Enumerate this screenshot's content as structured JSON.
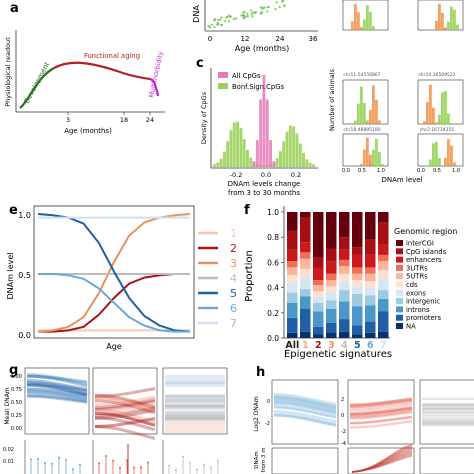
{
  "panels": {
    "a": {
      "letter": "a",
      "ylabel": "Physiological readout",
      "xlabel": "Age (months)",
      "ticks": [
        "3",
        "18",
        "24"
      ],
      "phases": [
        "Development",
        "Functional aging",
        "Multimorbidity"
      ],
      "colors": {
        "development": "#2a6e1e",
        "aging": "#b22222",
        "multimorbidity": "#c026d3"
      }
    },
    "b": {
      "ylabel": "DNA",
      "xlabel": "Age (months)",
      "ticks": [
        "0",
        "12",
        "24",
        "36"
      ]
    },
    "c": {
      "letter": "c",
      "ylabel": "Density of CpGs",
      "xlabel_line1": "DNAm levels change",
      "xlabel_line2": "from 3 to 30 months",
      "ticks": [
        "-0.2",
        "0.0",
        "0.2"
      ],
      "legend": [
        "All CpGs",
        "Bonf.Sign.CpGs"
      ],
      "colors": {
        "all": "#e879b9",
        "sign": "#9bd15a"
      }
    },
    "d": {
      "ylabel": "Number of animals",
      "xlabel": "DNAm level",
      "ticks": [
        "0.0",
        "0.5",
        "1.0"
      ],
      "subtitles": [
        "chr11:54556867",
        "chr10:36509522",
        "chr18:48895180",
        "chr2:16734355"
      ]
    },
    "e": {
      "letter": "e",
      "ylabel": "DNAm level",
      "xlabel": "Age",
      "yticks": [
        "1.0",
        "0.5",
        "0.0"
      ],
      "legend": [
        "1",
        "2",
        "3",
        "4",
        "5",
        "6",
        "7"
      ],
      "colors": [
        "#f6c9b5",
        "#a4161a",
        "#e8925f",
        "#bdbdbd",
        "#1f5fa6",
        "#6aa8d6",
        "#cfdff0"
      ]
    },
    "f": {
      "letter": "f",
      "ylabel": "Proportion",
      "xlabel": "Epigenetic signatures",
      "yticks": [
        "1.0",
        "0.8",
        "0.6",
        "0.4",
        "0.2",
        "0.0"
      ],
      "legend_title": "Genomic region",
      "legend": [
        "interCGI",
        "CpG islands",
        "enhancers",
        "3UTRs",
        "5UTRs",
        "cds",
        "exons",
        "intergenic",
        "introns",
        "promoters",
        "NA"
      ],
      "legend_colors": [
        "#67000d",
        "#a50f15",
        "#cb181d",
        "#ef6f59",
        "#fcb59b",
        "#fde0d2",
        "#d6e6f4",
        "#9ecae1",
        "#4a98c9",
        "#1f5fa6",
        "#08306b"
      ],
      "categories": [
        "All",
        "1",
        "2",
        "3",
        "4",
        "5",
        "6",
        "7"
      ],
      "category_colors": [
        "#222222",
        "#f6a98a",
        "#a4161a",
        "#e8925f",
        "#bdbdbd",
        "#1f5fa6",
        "#6aa8d6",
        "#cfdff0"
      ]
    },
    "g": {
      "letter": "g",
      "ylabel": "Mean DNAm",
      "yticks": [
        "1.00",
        "0.75",
        "0.50",
        "0.25",
        "0.00"
      ],
      "bottom_yticks": [
        "0.02",
        "0.01"
      ]
    },
    "h": {
      "letter": "h",
      "ylabel": "Log2 DNAm",
      "ylabel2_line1": "DNAm",
      "ylabel2_line2": "from 3 m",
      "ticks": [
        "2",
        "0",
        "-2",
        "-4"
      ],
      "ticks_left": [
        "0",
        "-2"
      ]
    }
  },
  "chart_data": [
    {
      "type": "line",
      "title": "",
      "xlabel": "Age (months)",
      "ylabel": "Physiological readout",
      "x": [
        0,
        3,
        6,
        9,
        12,
        15,
        18,
        21,
        24,
        26
      ],
      "series": [
        {
          "name": "Development",
          "values": [
            0.1,
            0.62,
            0.7,
            0.68,
            0.65,
            0.62,
            0.6,
            0.58,
            0.56,
            0.45
          ]
        }
      ]
    },
    {
      "type": "line",
      "title": "",
      "xlabel": "Age",
      "ylabel": "DNAm level",
      "ylim": [
        0,
        1
      ],
      "x": [
        0,
        1,
        2,
        3,
        4,
        5,
        6,
        7,
        8,
        9,
        10
      ],
      "series": [
        {
          "name": "1",
          "values": [
            0.03,
            0.03,
            0.03,
            0.03,
            0.03,
            0.03,
            0.03,
            0.03,
            0.03,
            0.03,
            0.03
          ]
        },
        {
          "name": "2",
          "values": [
            0.02,
            0.02,
            0.03,
            0.06,
            0.16,
            0.3,
            0.42,
            0.47,
            0.49,
            0.5,
            0.5
          ]
        },
        {
          "name": "3",
          "values": [
            0.02,
            0.03,
            0.06,
            0.14,
            0.34,
            0.6,
            0.82,
            0.93,
            0.97,
            0.99,
            1.0
          ]
        },
        {
          "name": "4",
          "values": [
            0.5,
            0.5,
            0.5,
            0.5,
            0.5,
            0.5,
            0.5,
            0.5,
            0.5,
            0.5,
            0.5
          ]
        },
        {
          "name": "5",
          "values": [
            1.0,
            0.99,
            0.97,
            0.92,
            0.76,
            0.52,
            0.3,
            0.15,
            0.07,
            0.03,
            0.02
          ]
        },
        {
          "name": "6",
          "values": [
            0.5,
            0.5,
            0.49,
            0.46,
            0.38,
            0.26,
            0.14,
            0.07,
            0.03,
            0.02,
            0.02
          ]
        },
        {
          "name": "7",
          "values": [
            0.97,
            0.97,
            0.97,
            0.97,
            0.97,
            0.97,
            0.97,
            0.97,
            0.97,
            0.97,
            0.97
          ]
        }
      ]
    },
    {
      "type": "bar",
      "title": "",
      "xlabel": "Epigenetic signatures",
      "ylabel": "Proportion",
      "ylim": [
        0,
        1
      ],
      "categories": [
        "All",
        "1",
        "2",
        "3",
        "4",
        "5",
        "6",
        "7"
      ],
      "series": [
        {
          "name": "NA",
          "values": [
            0.04,
            0.05,
            0.03,
            0.04,
            0.05,
            0.03,
            0.04,
            0.05
          ]
        },
        {
          "name": "promoters",
          "values": [
            0.12,
            0.18,
            0.06,
            0.08,
            0.1,
            0.07,
            0.09,
            0.16
          ]
        },
        {
          "name": "introns",
          "values": [
            0.12,
            0.1,
            0.12,
            0.11,
            0.14,
            0.15,
            0.13,
            0.1
          ]
        },
        {
          "name": "intergenic",
          "values": [
            0.08,
            0.06,
            0.07,
            0.07,
            0.09,
            0.1,
            0.08,
            0.07
          ]
        },
        {
          "name": "exons",
          "values": [
            0.08,
            0.09,
            0.05,
            0.06,
            0.07,
            0.06,
            0.06,
            0.09
          ]
        },
        {
          "name": "cds",
          "values": [
            0.06,
            0.07,
            0.04,
            0.05,
            0.06,
            0.05,
            0.05,
            0.07
          ]
        },
        {
          "name": "5UTRs",
          "values": [
            0.06,
            0.08,
            0.05,
            0.05,
            0.06,
            0.05,
            0.06,
            0.07
          ]
        },
        {
          "name": "3UTRs",
          "values": [
            0.05,
            0.05,
            0.04,
            0.05,
            0.05,
            0.05,
            0.05,
            0.05
          ]
        },
        {
          "name": "enhancers",
          "values": [
            0.09,
            0.08,
            0.1,
            0.1,
            0.08,
            0.1,
            0.1,
            0.08
          ]
        },
        {
          "name": "CpG islands",
          "values": [
            0.15,
            0.2,
            0.08,
            0.1,
            0.1,
            0.06,
            0.12,
            0.18
          ]
        },
        {
          "name": "interCGI",
          "values": [
            0.15,
            0.04,
            0.36,
            0.29,
            0.2,
            0.28,
            0.22,
            0.08
          ]
        }
      ]
    }
  ]
}
